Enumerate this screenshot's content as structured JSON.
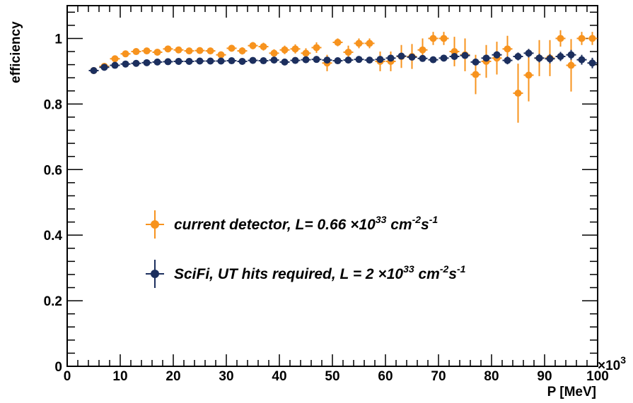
{
  "chart_data": {
    "type": "scatter",
    "xlabel": "P [MeV]",
    "ylabel": "efficiency",
    "x_multiplier_label": "×10",
    "x_multiplier_exp": "3",
    "xlim": [
      0,
      100
    ],
    "ylim": [
      0,
      1.1
    ],
    "xticks": [
      "0",
      "10",
      "20",
      "30",
      "40",
      "50",
      "60",
      "70",
      "80",
      "90",
      "100"
    ],
    "yticks": [
      "0",
      "0.2",
      "0.4",
      "0.6",
      "0.8",
      "1"
    ],
    "grid": false,
    "legend_position": "center-left",
    "colors": {
      "current": "#f7931e",
      "scifi": "#1c2f5e",
      "axis": "#000000"
    },
    "legend": [
      {
        "series_index": 0,
        "text": "current detector, L= 0.66 ×10",
        "sup1": "33",
        "mid": " cm",
        "sup2": "-2",
        "mid2": "s",
        "sup3": "-1"
      },
      {
        "series_index": 1,
        "text": "SciFi, UT hits required, L = 2 ×10",
        "sup1": "33",
        "mid": " cm",
        "sup2": "-2",
        "mid2": "s",
        "sup3": "-1"
      }
    ],
    "series": [
      {
        "name": "current detector, L= 0.66 ×10^33 cm^-2s^-1",
        "color": "#f7931e",
        "x": [
          5,
          7,
          9,
          11,
          13,
          15,
          17,
          19,
          21,
          23,
          25,
          27,
          29,
          31,
          33,
          35,
          37,
          39,
          41,
          43,
          45,
          47,
          49,
          51,
          53,
          55,
          57,
          59,
          61,
          63,
          65,
          67,
          69,
          71,
          73,
          75,
          77,
          79,
          81,
          83,
          85,
          87,
          89,
          91,
          93,
          95,
          97,
          99
        ],
        "y": [
          0.902,
          0.915,
          0.938,
          0.953,
          0.96,
          0.962,
          0.958,
          0.968,
          0.965,
          0.962,
          0.963,
          0.962,
          0.95,
          0.97,
          0.962,
          0.978,
          0.975,
          0.955,
          0.965,
          0.968,
          0.955,
          0.972,
          0.925,
          0.988,
          0.958,
          0.985,
          0.985,
          0.93,
          0.93,
          0.945,
          0.945,
          0.965,
          1.0,
          1.0,
          0.96,
          0.95,
          0.89,
          0.93,
          0.94,
          0.968,
          0.833,
          0.888,
          0.94,
          0.94,
          1.0,
          0.918,
          1.0,
          1.0
        ],
        "err": [
          0.005,
          0.006,
          0.007,
          0.007,
          0.008,
          0.008,
          0.008,
          0.008,
          0.008,
          0.009,
          0.009,
          0.009,
          0.01,
          0.01,
          0.011,
          0.011,
          0.012,
          0.012,
          0.013,
          0.014,
          0.015,
          0.016,
          0.025,
          0.012,
          0.02,
          0.015,
          0.015,
          0.03,
          0.03,
          0.035,
          0.038,
          0.035,
          0.02,
          0.02,
          0.045,
          0.05,
          0.06,
          0.05,
          0.05,
          0.04,
          0.09,
          0.08,
          0.055,
          0.055,
          0.025,
          0.08,
          0.02,
          0.02
        ]
      },
      {
        "name": "SciFi, UT hits required, L = 2 ×10^33 cm^-2s^-1",
        "color": "#1c2f5e",
        "x": [
          5,
          7,
          9,
          11,
          13,
          15,
          17,
          19,
          21,
          23,
          25,
          27,
          29,
          31,
          33,
          35,
          37,
          39,
          41,
          43,
          45,
          47,
          49,
          51,
          53,
          55,
          57,
          59,
          61,
          63,
          65,
          67,
          69,
          71,
          73,
          75,
          77,
          79,
          81,
          83,
          85,
          87,
          89,
          91,
          93,
          95,
          97,
          99
        ],
        "y": [
          0.902,
          0.912,
          0.918,
          0.922,
          0.924,
          0.926,
          0.928,
          0.929,
          0.93,
          0.93,
          0.931,
          0.931,
          0.931,
          0.932,
          0.93,
          0.933,
          0.932,
          0.934,
          0.928,
          0.933,
          0.935,
          0.936,
          0.934,
          0.932,
          0.934,
          0.936,
          0.934,
          0.936,
          0.94,
          0.946,
          0.943,
          0.939,
          0.935,
          0.94,
          0.945,
          0.948,
          0.928,
          0.94,
          0.95,
          0.933,
          0.945,
          0.955,
          0.94,
          0.938,
          0.945,
          0.95,
          0.935,
          0.925
        ],
        "err": [
          0.003,
          0.003,
          0.003,
          0.003,
          0.003,
          0.003,
          0.003,
          0.003,
          0.003,
          0.003,
          0.003,
          0.003,
          0.003,
          0.003,
          0.003,
          0.003,
          0.003,
          0.003,
          0.003,
          0.003,
          0.003,
          0.003,
          0.004,
          0.004,
          0.004,
          0.004,
          0.004,
          0.005,
          0.005,
          0.006,
          0.006,
          0.007,
          0.007,
          0.008,
          0.008,
          0.009,
          0.01,
          0.01,
          0.011,
          0.012,
          0.012,
          0.013,
          0.013,
          0.014,
          0.014,
          0.015,
          0.015,
          0.016
        ]
      }
    ]
  }
}
